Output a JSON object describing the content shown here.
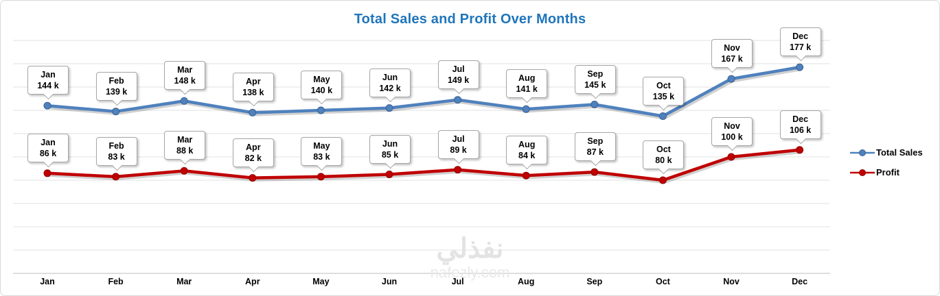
{
  "title": "Total Sales and Profit Over Months",
  "watermark": {
    "arabic": "نفذلي",
    "latin": "nafezly.com"
  },
  "legend": [
    {
      "label": "Total Sales",
      "color": "#4F81BD",
      "marker_stroke": "#3A6191"
    },
    {
      "label": "Profit",
      "color": "#C00000",
      "marker_stroke": "#8E0000"
    }
  ],
  "chart_data": {
    "type": "line",
    "title": "Total Sales and Profit Over Months",
    "xlabel": "",
    "ylabel": "",
    "categories": [
      "Jan",
      "Feb",
      "Mar",
      "Apr",
      "May",
      "Jun",
      "Jul",
      "Aug",
      "Sep",
      "Oct",
      "Nov",
      "Dec"
    ],
    "series": [
      {
        "name": "Total Sales",
        "color": "#4F81BD",
        "marker_stroke": "#3A6191",
        "values_k": [
          144,
          139,
          148,
          138,
          140,
          142,
          149,
          141,
          145,
          135,
          167,
          177
        ],
        "point_labels": [
          "144 k",
          "139 k",
          "148 k",
          "138 k",
          "140 k",
          "142 k",
          "149 k",
          "141 k",
          "145 k",
          "135 k",
          "167 k",
          "177 k"
        ]
      },
      {
        "name": "Profit",
        "color": "#C00000",
        "marker_stroke": "#8E0000",
        "values_k": [
          86,
          83,
          88,
          82,
          83,
          85,
          89,
          84,
          87,
          80,
          100,
          106
        ],
        "point_labels": [
          "86 k",
          "83 k",
          "88 k",
          "82 k",
          "83 k",
          "85 k",
          "89 k",
          "84 k",
          "87 k",
          "80 k",
          "100 k",
          "106 k"
        ]
      }
    ],
    "ylim_k": [
      0,
      200
    ],
    "grid": true,
    "gridline_step_k": 20,
    "legend_position": "right",
    "data_labels": "callout boxes showing month and value above each point"
  }
}
